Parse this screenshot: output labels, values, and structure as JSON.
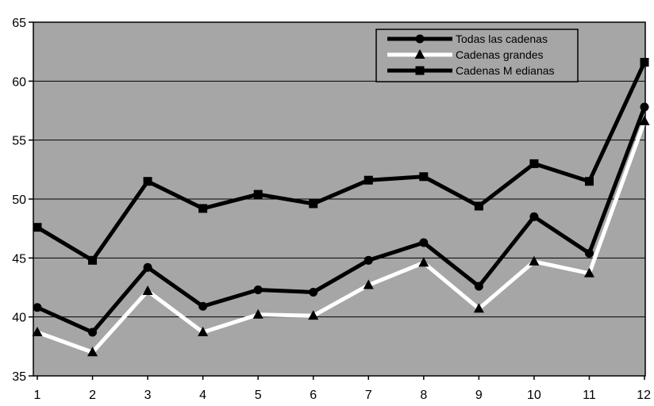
{
  "chart_data": {
    "type": "line",
    "title": "",
    "xlabel": "",
    "ylabel": "",
    "categories": [
      "1",
      "2",
      "3",
      "4",
      "5",
      "6",
      "7",
      "8",
      "9",
      "10",
      "11",
      "12"
    ],
    "ylim": [
      35,
      65
    ],
    "yticks": [
      35,
      40,
      45,
      50,
      55,
      60,
      65
    ],
    "grid": true,
    "legend_position": "top-right",
    "plot_background": "#a6a6a6",
    "series": [
      {
        "name": "Todas las cadenas",
        "marker": "circle",
        "color": "#000000",
        "values": [
          40.8,
          38.7,
          44.2,
          40.9,
          42.3,
          42.1,
          44.8,
          46.3,
          42.6,
          48.5,
          45.4,
          57.8
        ]
      },
      {
        "name": "Cadenas grandes",
        "marker": "triangle",
        "color": "#ffffff",
        "values": [
          38.7,
          37.0,
          42.2,
          38.7,
          40.2,
          40.1,
          42.7,
          44.6,
          40.7,
          44.7,
          43.7,
          56.6
        ]
      },
      {
        "name": "Cadenas M edianas",
        "marker": "square",
        "color": "#000000",
        "values": [
          47.6,
          44.8,
          51.5,
          49.2,
          50.4,
          49.6,
          51.6,
          51.9,
          49.4,
          53.0,
          51.5,
          61.6
        ]
      }
    ]
  }
}
